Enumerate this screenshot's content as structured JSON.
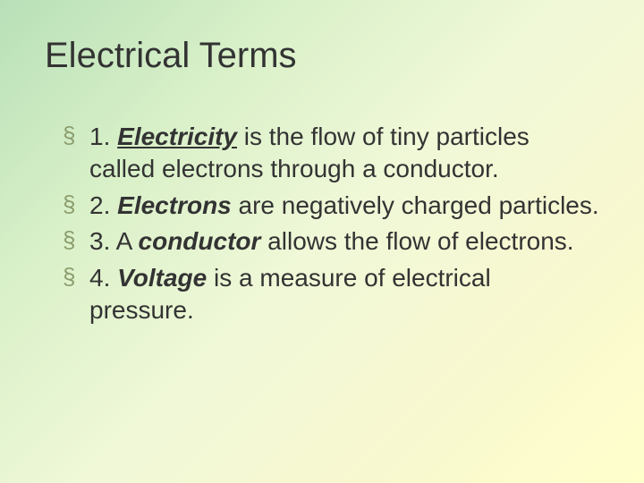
{
  "title": "Electrical Terms",
  "items": [
    {
      "number": "1.",
      "term": "Electricity",
      "term_style": "underline",
      "definition_before": "",
      "definition_after": " is the flow of tiny particles called electrons through a conductor."
    },
    {
      "number": "2.",
      "term": "Electrons",
      "term_style": "bold-italic",
      "definition_before": "",
      "definition_after": " are negatively charged particles."
    },
    {
      "number": "3.",
      "term": "conductor",
      "term_style": "bold-italic",
      "definition_before": "A ",
      "definition_after": " allows the flow of electrons."
    },
    {
      "number": "4.",
      "term": "Voltage",
      "term_style": "bold-italic",
      "definition_before": "",
      "definition_after": " is a measure of electrical pressure."
    }
  ],
  "colors": {
    "text": "#333333",
    "bullet": "#8b9b6b",
    "bg_start": "#b8e0b8",
    "bg_end": "#ffffcc"
  },
  "typography": {
    "title_fontsize": 40,
    "body_fontsize": 28,
    "font_family": "Arial"
  }
}
